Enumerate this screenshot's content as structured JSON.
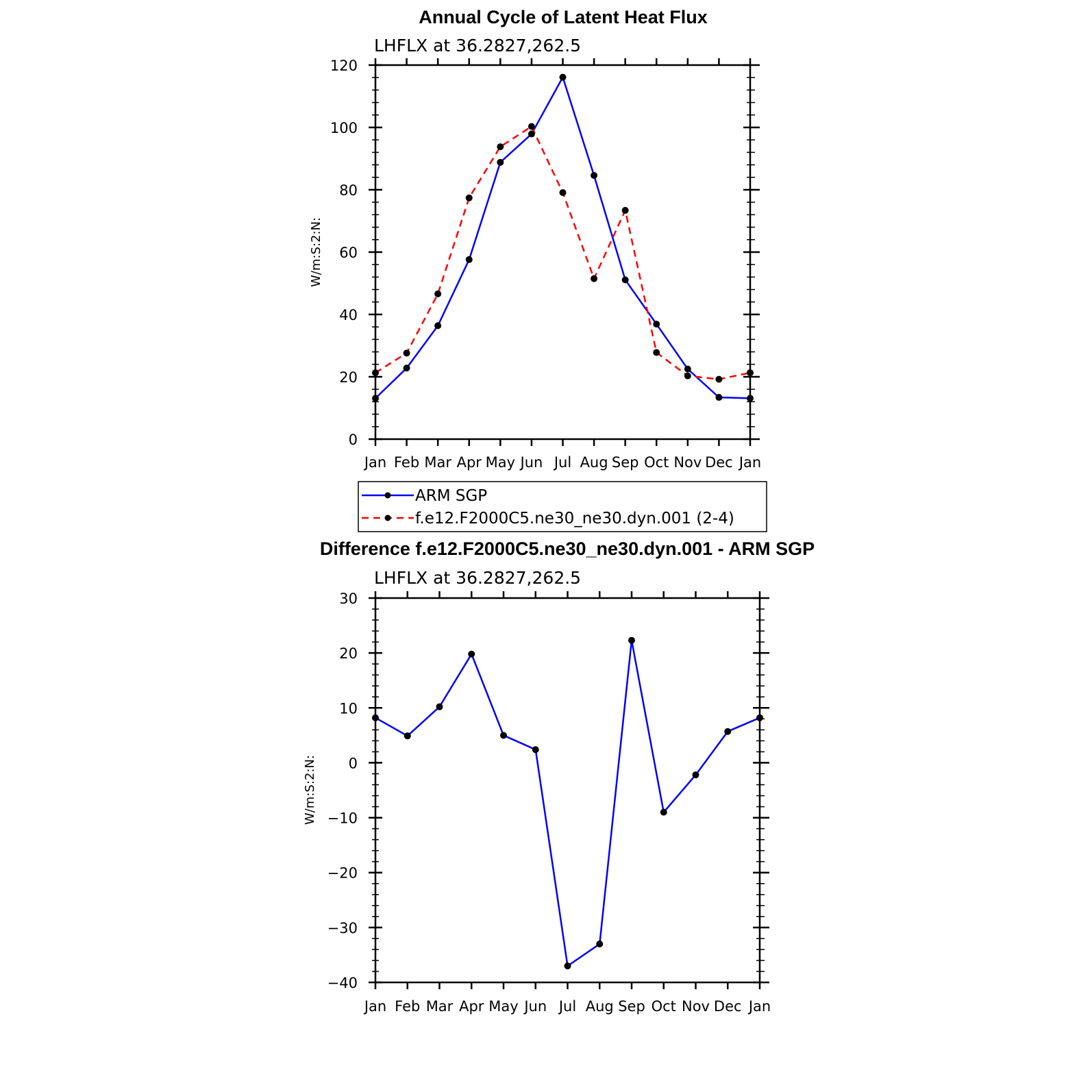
{
  "colors": {
    "obs": "#0000ff",
    "model": "#ff0000",
    "marker": "#000000"
  },
  "chart_data": [
    {
      "type": "line",
      "title": "Annual Cycle of Latent Heat Flux",
      "subtitle": "LHFLX at 36.2827,262.5",
      "ylabel": "W/m:S:2:N:",
      "xlabel": "",
      "categories": [
        "Jan",
        "Feb",
        "Mar",
        "Apr",
        "May",
        "Jun",
        "Jul",
        "Aug",
        "Sep",
        "Oct",
        "Nov",
        "Dec",
        "Jan"
      ],
      "ylim": [
        0,
        120
      ],
      "yticks": [
        "0",
        "20",
        "40",
        "60",
        "80",
        "100",
        "120"
      ],
      "series": [
        {
          "name": "ARM SGP",
          "style": "solid",
          "color": "#0000ff",
          "values": [
            13.1,
            22.8,
            36.4,
            57.6,
            88.8,
            97.9,
            116.1,
            84.6,
            51.1,
            36.9,
            22.5,
            13.4,
            13.1
          ]
        },
        {
          "name": "f.e12.F2000C5.ne30_ne30.dyn.001 (2-4)",
          "style": "dashed",
          "color": "#ff0000",
          "values": [
            21.3,
            27.6,
            46.6,
            77.4,
            93.8,
            100.3,
            79.1,
            51.5,
            73.4,
            27.8,
            20.3,
            19.2,
            21.3
          ]
        }
      ],
      "legend": "bottom"
    },
    {
      "type": "line",
      "title": "Difference f.e12.F2000C5.ne30_ne30.dyn.001 - ARM SGP",
      "subtitle": "LHFLX at 36.2827,262.5",
      "ylabel": "W/m:S:2:N:",
      "xlabel": "",
      "categories": [
        "Jan",
        "Feb",
        "Mar",
        "Apr",
        "May",
        "Jun",
        "Jul",
        "Aug",
        "Sep",
        "Oct",
        "Nov",
        "Dec",
        "Jan"
      ],
      "ylim": [
        -40,
        30
      ],
      "yticks": [
        "−40",
        "−30",
        "−20",
        "−10",
        "0",
        "10",
        "20",
        "30"
      ],
      "series": [
        {
          "style": "solid",
          "color": "#0000ff",
          "values": [
            8.2,
            4.9,
            10.2,
            19.8,
            5.0,
            2.4,
            -37.0,
            -33.0,
            22.3,
            -9.0,
            -2.2,
            5.7,
            8.2
          ]
        }
      ]
    }
  ]
}
